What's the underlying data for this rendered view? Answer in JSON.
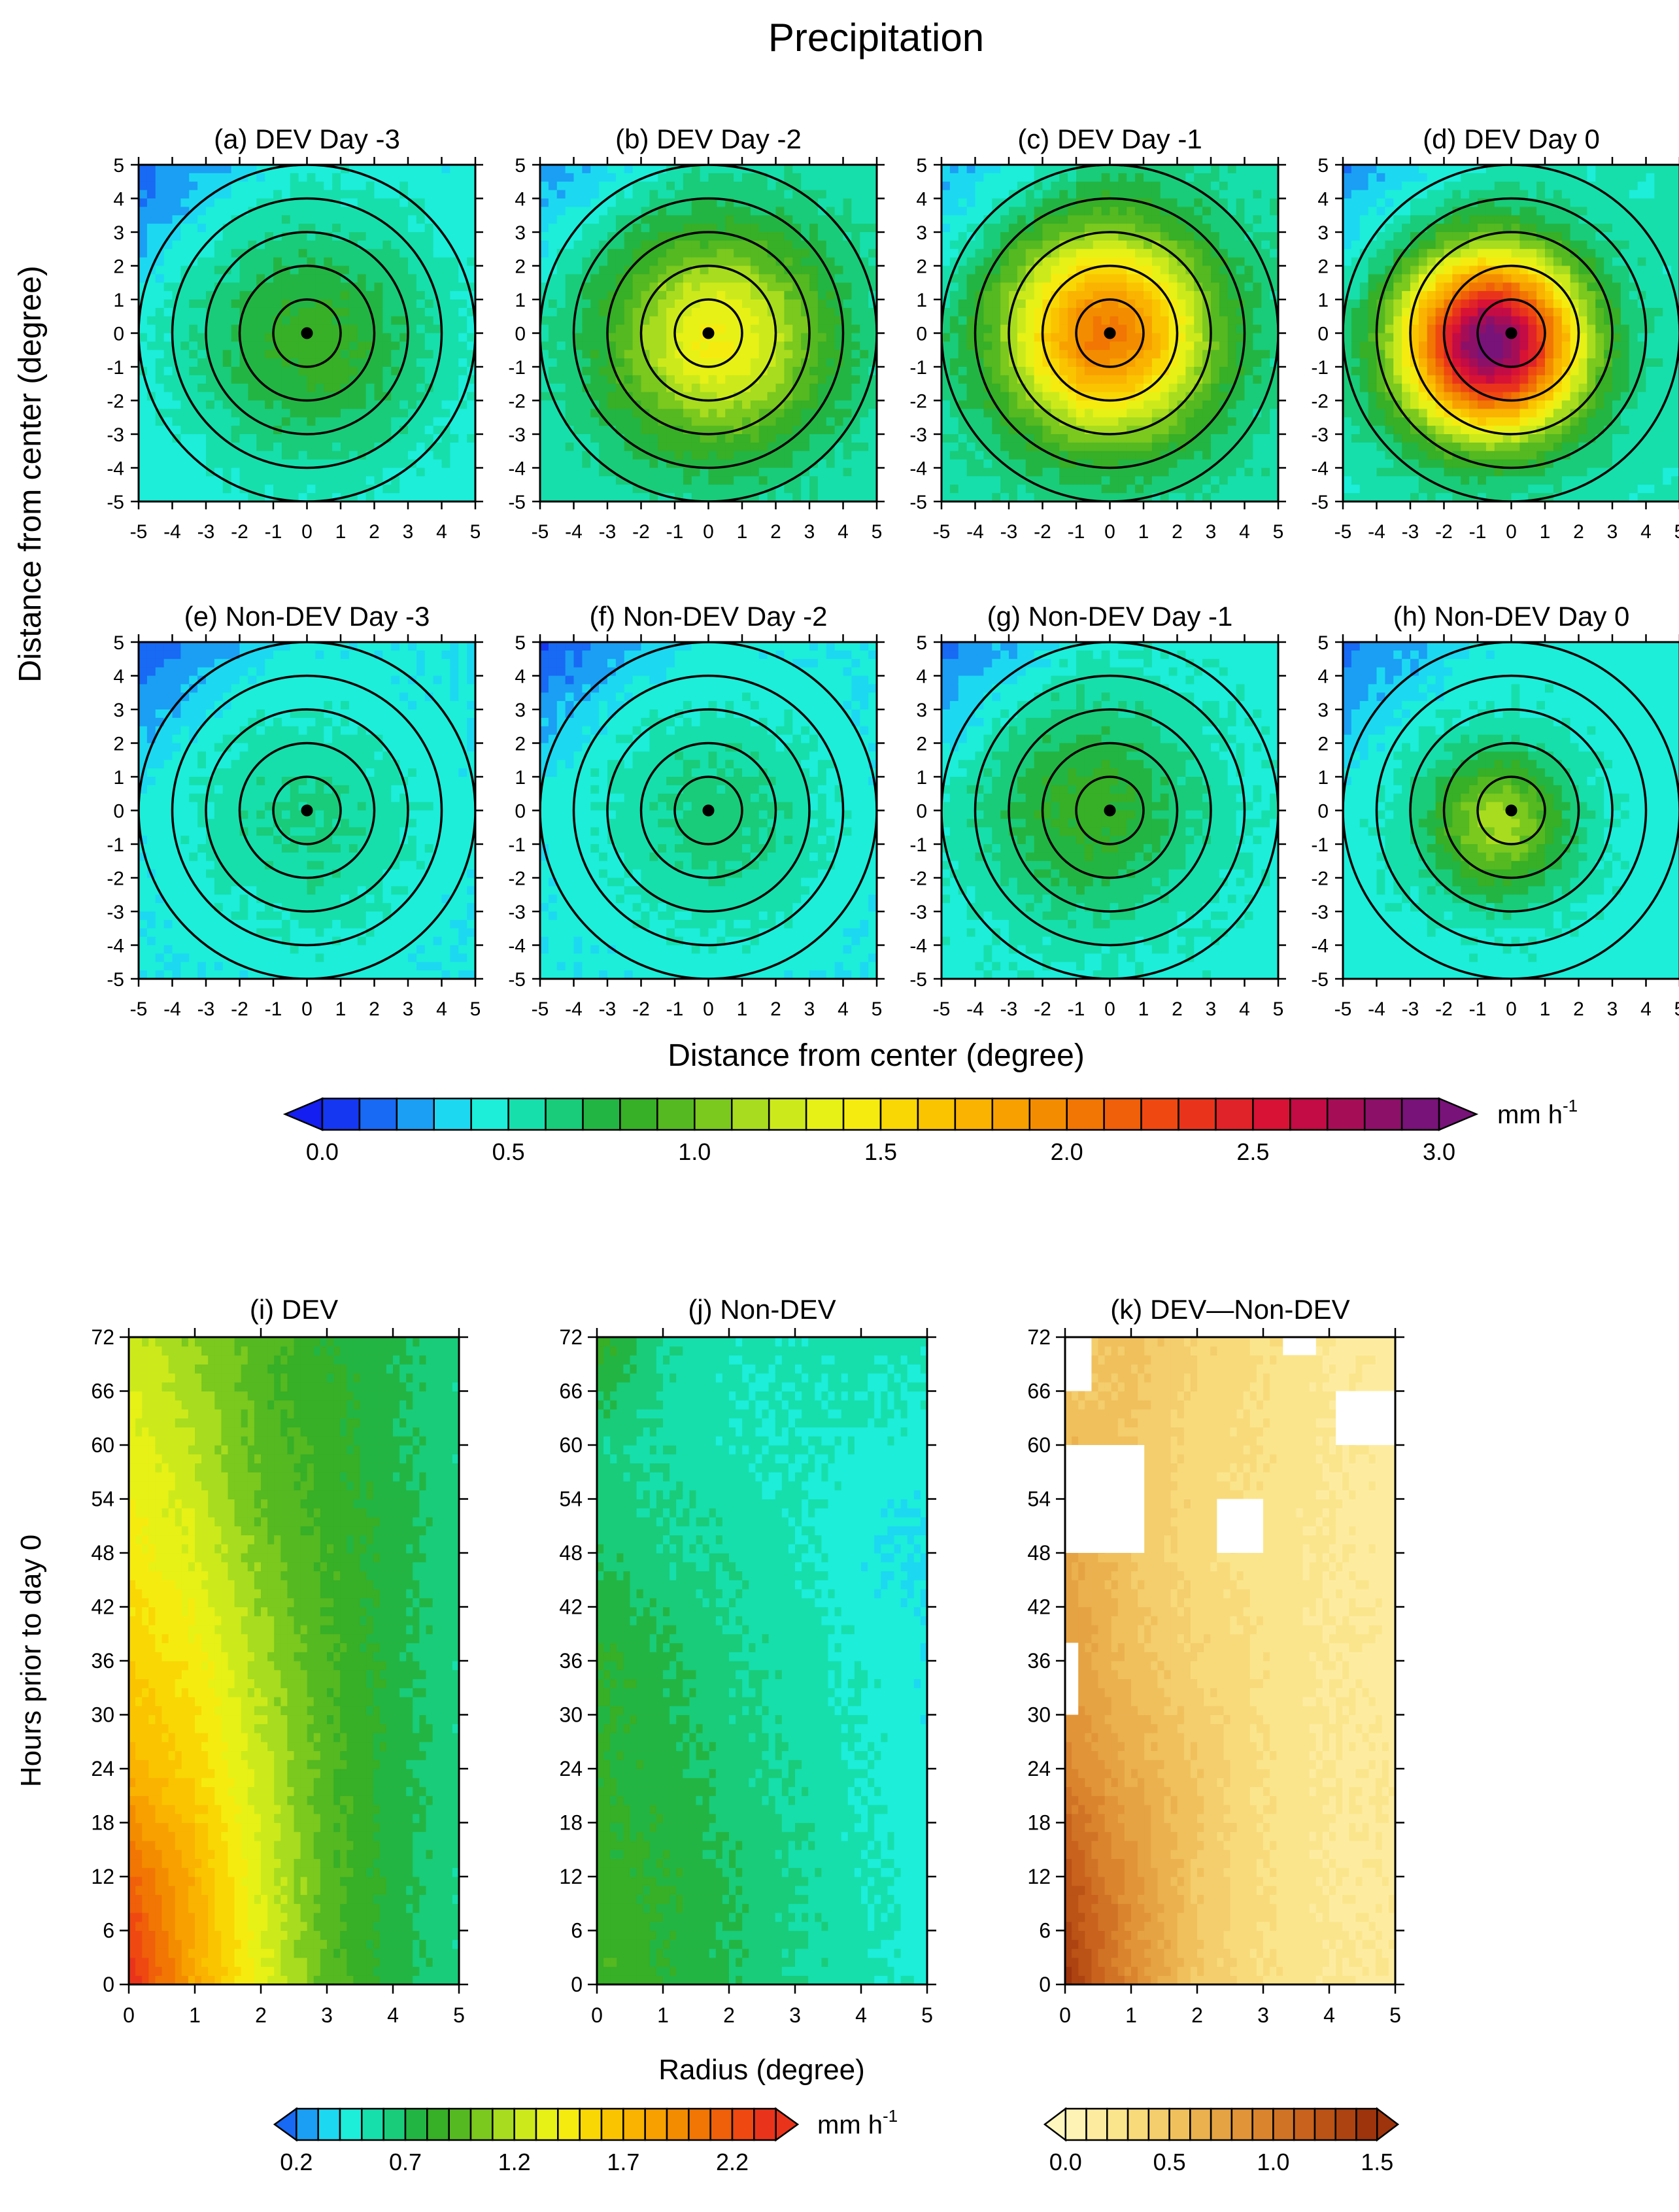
{
  "figure_title": "Precipitation",
  "chart_data": [
    {
      "type": "heatmap",
      "group": "composite-maps",
      "xlabel": "Distance from center (degree)",
      "ylabel": "Distance from center (degree)",
      "xlim": [
        -5,
        5
      ],
      "ylim": [
        -5,
        5
      ],
      "ticks": [
        "-5",
        "-4",
        "-3",
        "-2",
        "-1",
        "0",
        "1",
        "2",
        "3",
        "4",
        "5"
      ],
      "circle_radii_degree": [
        1,
        2,
        3,
        4,
        5
      ],
      "center_marker": "black-dot",
      "panels": [
        {
          "label": "(a) DEV Day -3",
          "background_mmh": 0.42,
          "peak_mmh": 0.85,
          "peak_x": 0.2,
          "peak_y": -0.3,
          "spread_degree": 2.6
        },
        {
          "label": "(b) DEV Day -2",
          "background_mmh": 0.52,
          "peak_mmh": 1.42,
          "peak_x": 0.3,
          "peak_y": -0.2,
          "spread_degree": 2.3
        },
        {
          "label": "(c) DEV Day -1",
          "background_mmh": 0.55,
          "peak_mmh": 2.05,
          "peak_x": -0.1,
          "peak_y": 0.0,
          "spread_degree": 2.1
        },
        {
          "label": "(d) DEV Day 0",
          "background_mmh": 0.52,
          "peak_mmh": 3.0,
          "peak_x": -0.6,
          "peak_y": -0.3,
          "spread_degree": 1.8
        },
        {
          "label": "(e) Non-DEV Day -3",
          "background_mmh": 0.4,
          "peak_mmh": 0.62,
          "peak_x": 0.0,
          "peak_y": -0.4,
          "spread_degree": 2.5
        },
        {
          "label": "(f) Non-DEV Day -2",
          "background_mmh": 0.4,
          "peak_mmh": 0.65,
          "peak_x": 0.2,
          "peak_y": -0.3,
          "spread_degree": 2.5
        },
        {
          "label": "(g) Non-DEV Day -1",
          "background_mmh": 0.45,
          "peak_mmh": 0.85,
          "peak_x": -0.6,
          "peak_y": 0.0,
          "spread_degree": 2.3
        },
        {
          "label": "(h) Non-DEV Day 0",
          "background_mmh": 0.45,
          "peak_mmh": 1.15,
          "peak_x": -0.4,
          "peak_y": -0.4,
          "spread_degree": 1.5
        }
      ],
      "colorbar": {
        "unit": "mm h",
        "unit_exponent": "-1",
        "min": 0.0,
        "max": 3.0,
        "step": 0.1,
        "tick_labels": [
          "0.0",
          "0.5",
          "1.0",
          "1.5",
          "2.0",
          "2.5",
          "3.0"
        ]
      }
    },
    {
      "type": "heatmap",
      "group": "hovmoller",
      "xlabel": "Radius (degree)",
      "ylabel": "Hours prior to day 0",
      "xlim": [
        0,
        5
      ],
      "ylim": [
        0,
        72
      ],
      "x_ticks": [
        "0",
        "1",
        "2",
        "3",
        "4",
        "5"
      ],
      "y_ticks": [
        "0",
        "6",
        "12",
        "18",
        "24",
        "30",
        "36",
        "42",
        "48",
        "54",
        "60",
        "66",
        "72"
      ],
      "radius": [
        0,
        1,
        2,
        3,
        4,
        5
      ],
      "hours": [
        0,
        12,
        24,
        36,
        48,
        60,
        72
      ],
      "panels": [
        {
          "label": "(i) DEV",
          "palette": "precip",
          "values": [
            [
              2.4,
              1.8,
              1.35,
              0.95,
              0.75,
              0.62
            ],
            [
              2.15,
              1.75,
              1.3,
              0.95,
              0.75,
              0.62
            ],
            [
              1.75,
              1.55,
              1.25,
              0.95,
              0.75,
              0.62
            ],
            [
              1.6,
              1.45,
              1.15,
              0.92,
              0.75,
              0.62
            ],
            [
              1.45,
              1.3,
              1.05,
              0.88,
              0.75,
              0.62
            ],
            [
              1.35,
              1.2,
              0.95,
              0.85,
              0.72,
              0.62
            ],
            [
              1.25,
              1.1,
              0.95,
              0.8,
              0.72,
              0.62
            ]
          ]
        },
        {
          "label": "(j) Non-DEV",
          "palette": "precip",
          "values": [
            [
              0.9,
              0.8,
              0.7,
              0.62,
              0.55,
              0.45
            ],
            [
              0.85,
              0.8,
              0.7,
              0.6,
              0.52,
              0.45
            ],
            [
              0.8,
              0.75,
              0.65,
              0.58,
              0.5,
              0.42
            ],
            [
              0.82,
              0.72,
              0.62,
              0.55,
              0.48,
              0.42
            ],
            [
              0.7,
              0.62,
              0.58,
              0.52,
              0.42,
              0.38
            ],
            [
              0.62,
              0.58,
              0.52,
              0.5,
              0.48,
              0.45
            ],
            [
              0.88,
              0.6,
              0.52,
              0.52,
              0.55,
              0.52
            ]
          ]
        },
        {
          "label": "(k) DEV—Non-DEV",
          "palette": "difference",
          "values": [
            [
              1.45,
              0.9,
              0.5,
              0.3,
              0.2,
              0.18
            ],
            [
              1.25,
              0.85,
              0.5,
              0.3,
              0.2,
              0.18
            ],
            [
              0.95,
              0.7,
              0.5,
              0.3,
              0.2,
              0.18
            ],
            [
              0.8,
              0.55,
              0.4,
              0.28,
              0.2,
              0.16
            ],
            [
              0.75,
              0.5,
              0.35,
              0.25,
              0.2,
              0.16
            ],
            [
              0.6,
              0.5,
              0.35,
              0.3,
              0.2,
              0.16
            ],
            [
              0.4,
              0.55,
              0.4,
              0.3,
              0.2,
              0.15
            ]
          ],
          "masked_regions": [
            {
              "radius": [
                0.0,
                0.4
              ],
              "hours": [
                66,
                72
              ]
            },
            {
              "radius": [
                0.0,
                1.2
              ],
              "hours": [
                48,
                60
              ]
            },
            {
              "radius": [
                0.0,
                0.2
              ],
              "hours": [
                30,
                38
              ]
            },
            {
              "radius": [
                2.3,
                3.0
              ],
              "hours": [
                48,
                54
              ]
            },
            {
              "radius": [
                4.1,
                5.0
              ],
              "hours": [
                60,
                66
              ]
            },
            {
              "radius": [
                3.3,
                3.8
              ],
              "hours": [
                70,
                72
              ]
            }
          ]
        }
      ],
      "colorbar_precip": {
        "unit": "mm h",
        "unit_exponent": "-1",
        "min": 0.2,
        "max": 2.4,
        "step": 0.1,
        "tick_labels": [
          "0.2",
          "0.7",
          "1.2",
          "1.7",
          "2.2"
        ]
      },
      "colorbar_difference": {
        "min": 0.0,
        "max": 1.5,
        "step": 0.1,
        "tick_labels": [
          "0.0",
          "0.5",
          "1.0",
          "1.5"
        ]
      }
    }
  ]
}
